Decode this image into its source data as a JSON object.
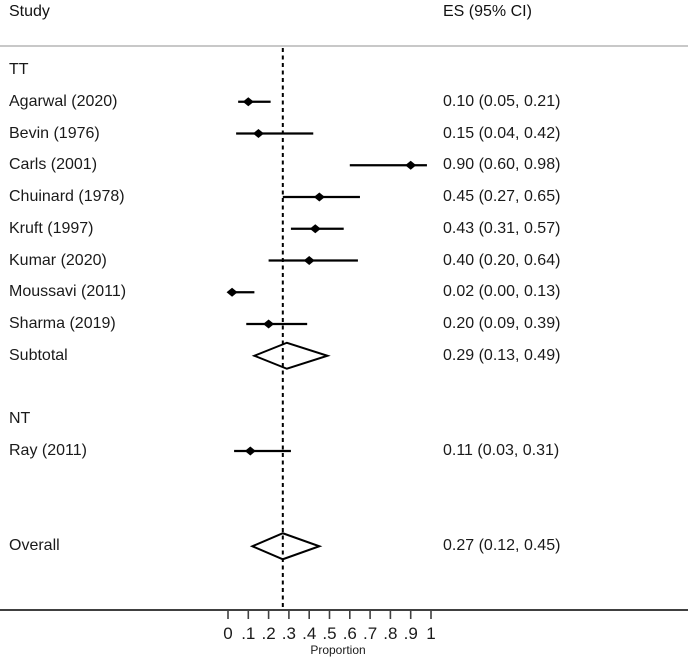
{
  "chart_data": {
    "type": "forest",
    "columns": {
      "study": "Study",
      "es": "ES (95% CI)"
    },
    "xlabel": "Proportion",
    "xlim": [
      0,
      1
    ],
    "x_ticks": [
      {
        "v": 0.0,
        "label": "0"
      },
      {
        "v": 0.1,
        "label": ".1"
      },
      {
        "v": 0.2,
        "label": ".2"
      },
      {
        "v": 0.3,
        "label": ".3"
      },
      {
        "v": 0.4,
        "label": ".4"
      },
      {
        "v": 0.5,
        "label": ".5"
      },
      {
        "v": 0.6,
        "label": ".6"
      },
      {
        "v": 0.7,
        "label": ".7"
      },
      {
        "v": 0.8,
        "label": ".8"
      },
      {
        "v": 0.9,
        "label": ".9"
      },
      {
        "v": 1.0,
        "label": "1"
      }
    ],
    "null_line": {
      "x": 0.27,
      "style": "dashed"
    },
    "rows": [
      {
        "kind": "group",
        "label": "TT"
      },
      {
        "kind": "study",
        "label": "Agarwal (2020)",
        "es": 0.1,
        "ci": [
          0.05,
          0.21
        ],
        "es_text": "0.10 (0.05, 0.21)"
      },
      {
        "kind": "study",
        "label": "Bevin (1976)",
        "es": 0.15,
        "ci": [
          0.04,
          0.42
        ],
        "es_text": "0.15 (0.04, 0.42)"
      },
      {
        "kind": "study",
        "label": "Carls (2001)",
        "es": 0.9,
        "ci": [
          0.6,
          0.98
        ],
        "es_text": "0.90 (0.60, 0.98)"
      },
      {
        "kind": "study",
        "label": "Chuinard (1978)",
        "es": 0.45,
        "ci": [
          0.27,
          0.65
        ],
        "es_text": "0.45 (0.27, 0.65)"
      },
      {
        "kind": "study",
        "label": "Kruft (1997)",
        "es": 0.43,
        "ci": [
          0.31,
          0.57
        ],
        "es_text": "0.43 (0.31, 0.57)"
      },
      {
        "kind": "study",
        "label": "Kumar (2020)",
        "es": 0.4,
        "ci": [
          0.2,
          0.64
        ],
        "es_text": "0.40 (0.20, 0.64)"
      },
      {
        "kind": "study",
        "label": "Moussavi (2011)",
        "es": 0.02,
        "ci": [
          0.0,
          0.13
        ],
        "es_text": "0.02 (0.00, 0.13)"
      },
      {
        "kind": "study",
        "label": "Sharma (2019)",
        "es": 0.2,
        "ci": [
          0.09,
          0.39
        ],
        "es_text": "0.20 (0.09, 0.39)"
      },
      {
        "kind": "summary",
        "label": "Subtotal",
        "es": 0.29,
        "ci": [
          0.13,
          0.49
        ],
        "es_text": "0.29 (0.13, 0.49)"
      },
      {
        "kind": "spacer"
      },
      {
        "kind": "group",
        "label": "NT"
      },
      {
        "kind": "study",
        "label": "Ray (2011)",
        "es": 0.11,
        "ci": [
          0.03,
          0.31
        ],
        "es_text": "0.11 (0.03, 0.31)"
      },
      {
        "kind": "spacer"
      },
      {
        "kind": "spacer"
      },
      {
        "kind": "summary",
        "label": "Overall",
        "es": 0.27,
        "ci": [
          0.12,
          0.45
        ],
        "es_text": "0.27 (0.12, 0.45)"
      }
    ],
    "colors": {
      "element": "#000000",
      "axis": "#404040",
      "separator": "#b5b5b5",
      "text": "#1a1a1a"
    }
  }
}
